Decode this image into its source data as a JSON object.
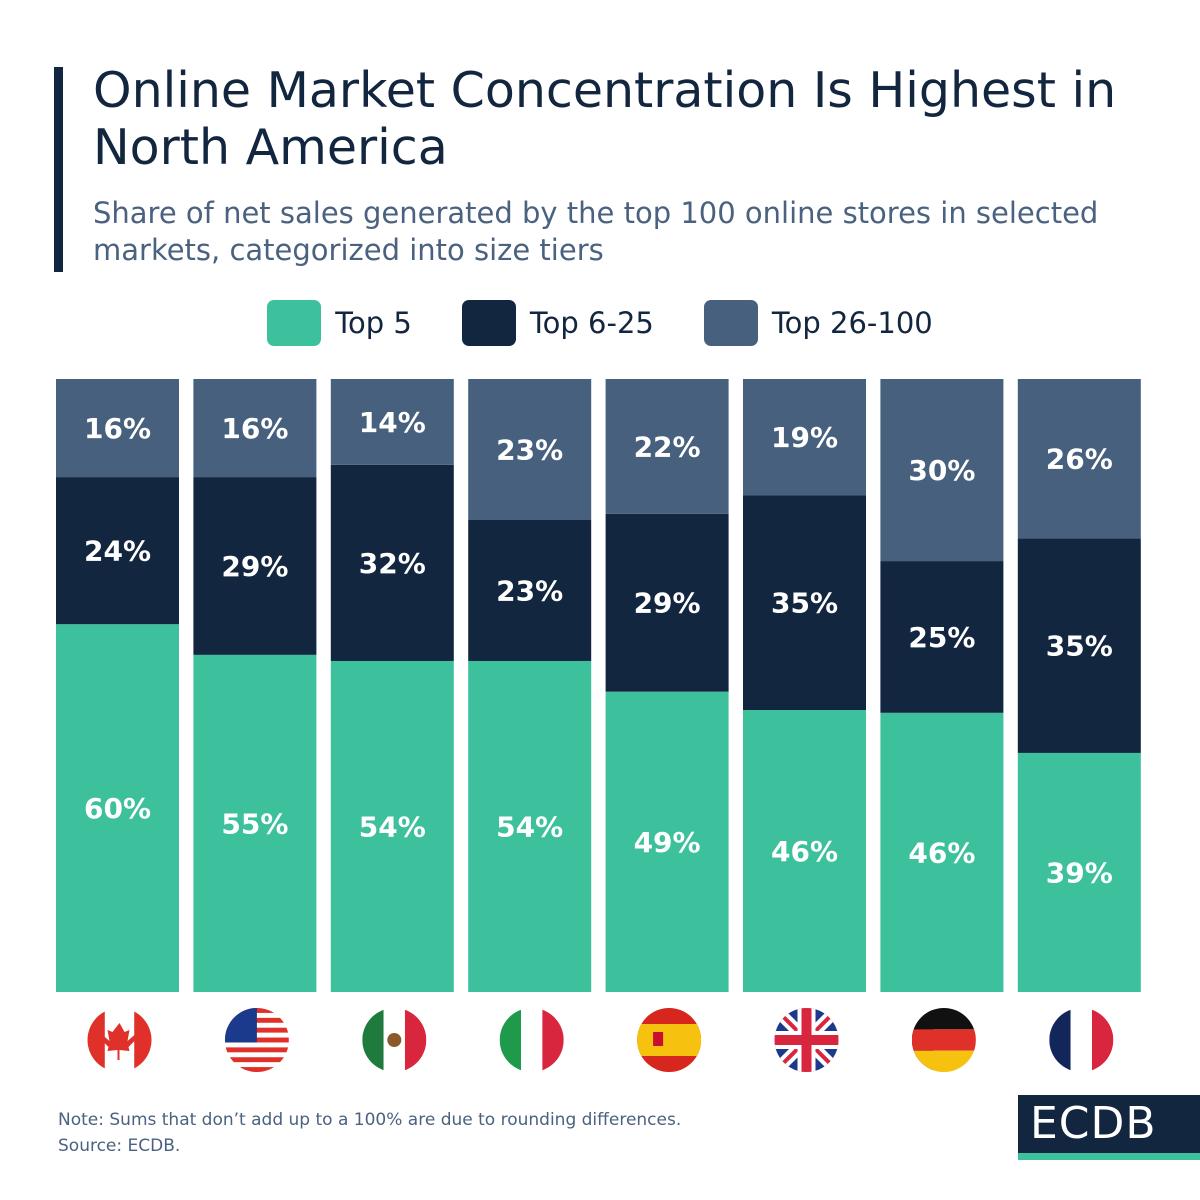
{
  "header": {
    "title": "Online Market Concentration Is Highest in North America",
    "subtitle": "Share of net sales generated by the top 100 online stores in selected markets, categorized into size tiers"
  },
  "footer": {
    "note": "Note: Sums that don’t add up to a 100% are due to rounding differences.",
    "source": "Source: ECDB.",
    "logo": "ECDB"
  },
  "chart_data": {
    "type": "bar",
    "stacked": true,
    "categories": [
      "Canada",
      "United States",
      "Mexico",
      "Italy",
      "Spain",
      "United Kingdom",
      "Germany",
      "France"
    ],
    "category_icons": [
      "flag-canada",
      "flag-usa",
      "flag-mexico",
      "flag-italy",
      "flag-spain",
      "flag-uk",
      "flag-germany",
      "flag-france"
    ],
    "series": [
      {
        "name": "Top 5",
        "color": "#3dc09c",
        "values": [
          60,
          55,
          54,
          54,
          49,
          46,
          46,
          39
        ],
        "labels": [
          "60%",
          "55%",
          "54%",
          "54%",
          "49%",
          "46%",
          "46%",
          "39%"
        ]
      },
      {
        "name": "Top 6-25",
        "color": "#13263f",
        "values": [
          24,
          29,
          32,
          23,
          29,
          35,
          25,
          35
        ],
        "labels": [
          "24%",
          "29%",
          "32%",
          "23%",
          "29%",
          "35%",
          "25%",
          "35%"
        ]
      },
      {
        "name": "Top 26-100",
        "color": "#47607e",
        "values": [
          16,
          16,
          14,
          23,
          22,
          19,
          30,
          26
        ],
        "labels": [
          "16%",
          "16%",
          "14%",
          "23%",
          "22%",
          "19%",
          "30%",
          "26%"
        ]
      }
    ],
    "legend_position": "top-center",
    "grid": false
  }
}
